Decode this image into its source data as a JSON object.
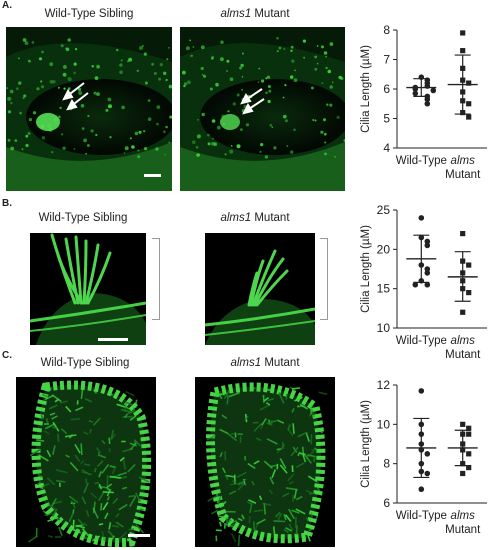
{
  "panels": [
    {
      "letter": "A.",
      "left_caption": "Wild-Type Sibling",
      "right_caption_italic": "alms1",
      "right_caption_rest": " Mutant",
      "chart_data": {
        "type": "scatter",
        "ylabel": "Cilia Length (µM)",
        "ylim": [
          4,
          8
        ],
        "yticks": [
          4,
          5,
          6,
          7,
          8
        ],
        "categories": [
          {
            "line1": "Wild-Type",
            "line2": "",
            "italic": false
          },
          {
            "line1": "alms",
            "line2": "Mutant",
            "italic": true
          }
        ],
        "series": [
          {
            "marker": "circle",
            "values": [
              6.4,
              6.3,
              6.2,
              6.1,
              6.05,
              6.0,
              5.95,
              5.85,
              5.75,
              5.65,
              5.5
            ],
            "mean": 6.05,
            "sd_low": 5.75,
            "sd_high": 6.35
          },
          {
            "marker": "square",
            "values": [
              7.9,
              7.3,
              6.7,
              6.3,
              6.2,
              5.9,
              5.6,
              5.5,
              5.2,
              5.05
            ],
            "mean": 6.15,
            "sd_low": 5.15,
            "sd_high": 7.15
          }
        ]
      }
    },
    {
      "letter": "B.",
      "left_caption": "Wild-Type Sibling",
      "right_caption_italic": "alms1",
      "right_caption_rest": " Mutant",
      "chart_data": {
        "type": "scatter",
        "ylabel": "Cilia Length (µM)",
        "ylim": [
          10,
          25
        ],
        "yticks": [
          10,
          15,
          20,
          25
        ],
        "categories": [
          {
            "line1": "Wild-Type",
            "line2": "",
            "italic": false
          },
          {
            "line1": "alms",
            "line2": "Mutant",
            "italic": true
          }
        ],
        "series": [
          {
            "marker": "circle",
            "values": [
              24.0,
              21.5,
              21.0,
              20.5,
              18.0,
              17.5,
              17.0,
              16.0,
              15.5,
              15.5
            ],
            "mean": 18.8,
            "sd_low": 15.8,
            "sd_high": 21.8
          },
          {
            "marker": "square",
            "values": [
              22.0,
              18.5,
              18.0,
              17.0,
              16.0,
              15.0,
              14.5,
              12.0
            ],
            "mean": 16.5,
            "sd_low": 13.4,
            "sd_high": 19.7
          }
        ]
      }
    },
    {
      "letter": "C.",
      "left_caption": "Wild-Type Sibling",
      "right_caption_italic": "alms1",
      "right_caption_rest": " Mutant",
      "chart_data": {
        "type": "scatter",
        "ylabel": "Cilia Length (µM)",
        "ylim": [
          6,
          12
        ],
        "yticks": [
          6,
          8,
          10,
          12
        ],
        "categories": [
          {
            "line1": "Wild-Type",
            "line2": "",
            "italic": false
          },
          {
            "line1": "alms",
            "line2": "Mutant",
            "italic": true
          }
        ],
        "series": [
          {
            "marker": "circle",
            "values": [
              11.7,
              10.0,
              9.5,
              9.0,
              8.7,
              8.5,
              8.0,
              7.6,
              7.5,
              6.7
            ],
            "mean": 8.8,
            "sd_low": 7.3,
            "sd_high": 10.3
          },
          {
            "marker": "square",
            "values": [
              10.0,
              9.8,
              9.5,
              9.5,
              9.0,
              8.7,
              8.5,
              8.0,
              7.8,
              7.5
            ],
            "mean": 8.8,
            "sd_low": 7.9,
            "sd_high": 9.7
          }
        ]
      }
    }
  ],
  "colors": {
    "fluorescence": "#39d33a",
    "fluorescence_dim": "#1c7a22",
    "background": "#000000",
    "plot_ink": "#222222"
  }
}
